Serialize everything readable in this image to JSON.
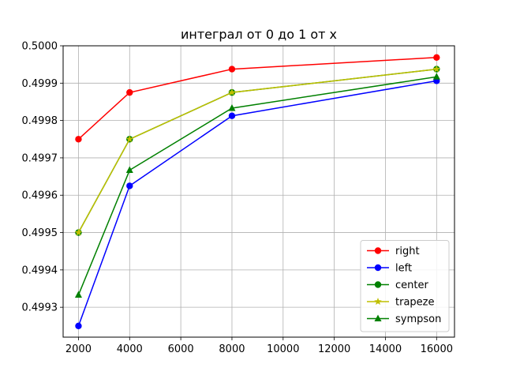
{
  "chart_data": {
    "type": "line",
    "title": "интеграл от 0 до 1 от x",
    "xlabel": "",
    "ylabel": "",
    "x": [
      2000,
      4000,
      8000,
      16000
    ],
    "xlim": [
      1400,
      16700
    ],
    "ylim": [
      0.49922,
      0.5
    ],
    "xticks": [
      2000,
      4000,
      6000,
      8000,
      10000,
      12000,
      14000,
      16000
    ],
    "xtick_labels": [
      "2000",
      "4000",
      "6000",
      "8000",
      "10000",
      "12000",
      "14000",
      "16000"
    ],
    "yticks": [
      0.4993,
      0.4994,
      0.4995,
      0.4996,
      0.4997,
      0.4998,
      0.4999,
      0.5
    ],
    "ytick_labels": [
      "0.4993",
      "0.4994",
      "0.4995",
      "0.4996",
      "0.4997",
      "0.4998",
      "0.4999",
      "0.5000"
    ],
    "grid": true,
    "legend_position": "lower-right",
    "series": [
      {
        "name": "right",
        "values": [
          0.49975,
          0.499875,
          0.4999375,
          0.49996875
        ],
        "color": "#ff0000",
        "marker": "circle"
      },
      {
        "name": "left",
        "values": [
          0.49925,
          0.499625,
          0.4998125,
          0.49990625
        ],
        "color": "#0000ff",
        "marker": "circle"
      },
      {
        "name": "center",
        "values": [
          0.4995,
          0.49975,
          0.499875,
          0.4999375
        ],
        "color": "#008000",
        "marker": "circle"
      },
      {
        "name": "trapeze",
        "values": [
          0.4995,
          0.49975,
          0.499875,
          0.4999375
        ],
        "color": "#bfbf00",
        "marker": "star"
      },
      {
        "name": "sympson",
        "values": [
          0.499333,
          0.499667,
          0.499833,
          0.499917
        ],
        "color": "#008000",
        "marker": "triangle"
      }
    ]
  }
}
